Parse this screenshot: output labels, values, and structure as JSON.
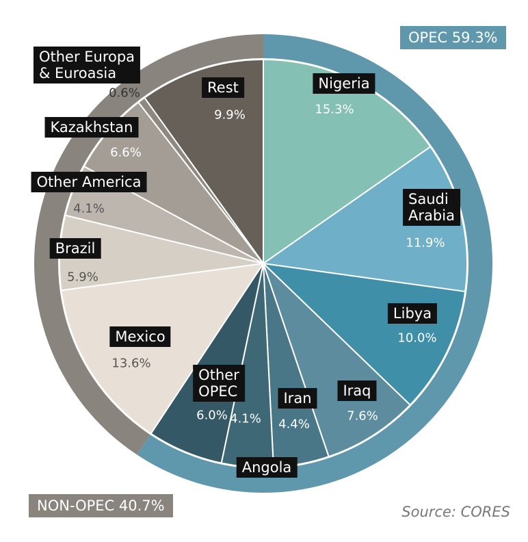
{
  "chart_data": {
    "type": "pie",
    "categories": [
      "Nigeria",
      "Saudi\nArabia",
      "Libya",
      "Iraq",
      "Iran",
      "Angola",
      "Other\nOPEC",
      "Mexico",
      "Brazil",
      "Other America",
      "Kazakhstan",
      "Other Europa\n& Euroasia",
      "Rest"
    ],
    "values": [
      15.3,
      11.9,
      10.0,
      7.6,
      4.4,
      4.1,
      6.0,
      13.6,
      5.9,
      4.1,
      6.6,
      0.6,
      9.9
    ],
    "value_labels": [
      "15.3%",
      "11.9%",
      "10.0%",
      "7.6%",
      "4.4%",
      "4.1%",
      "6.0%",
      "13.6%",
      "5.9%",
      "4.1%",
      "6.6%",
      "0.6%",
      "9.9%"
    ],
    "colors": [
      "#84c0b4",
      "#6fafc8",
      "#3f8fa8",
      "#5d8c9e",
      "#4a7787",
      "#3e6876",
      "#345866",
      "#e8e0d7",
      "#d6cfc5",
      "#bdb6ae",
      "#a39d95",
      "#8e8881",
      "#666059"
    ],
    "groups": [
      {
        "label": "OPEC 59.3%",
        "value": 59.3,
        "color": "#5f97ad"
      },
      {
        "label": "NON-OPEC 40.7%",
        "value": 40.7,
        "color": "#8a847e"
      }
    ],
    "source": "Source: CORES"
  }
}
